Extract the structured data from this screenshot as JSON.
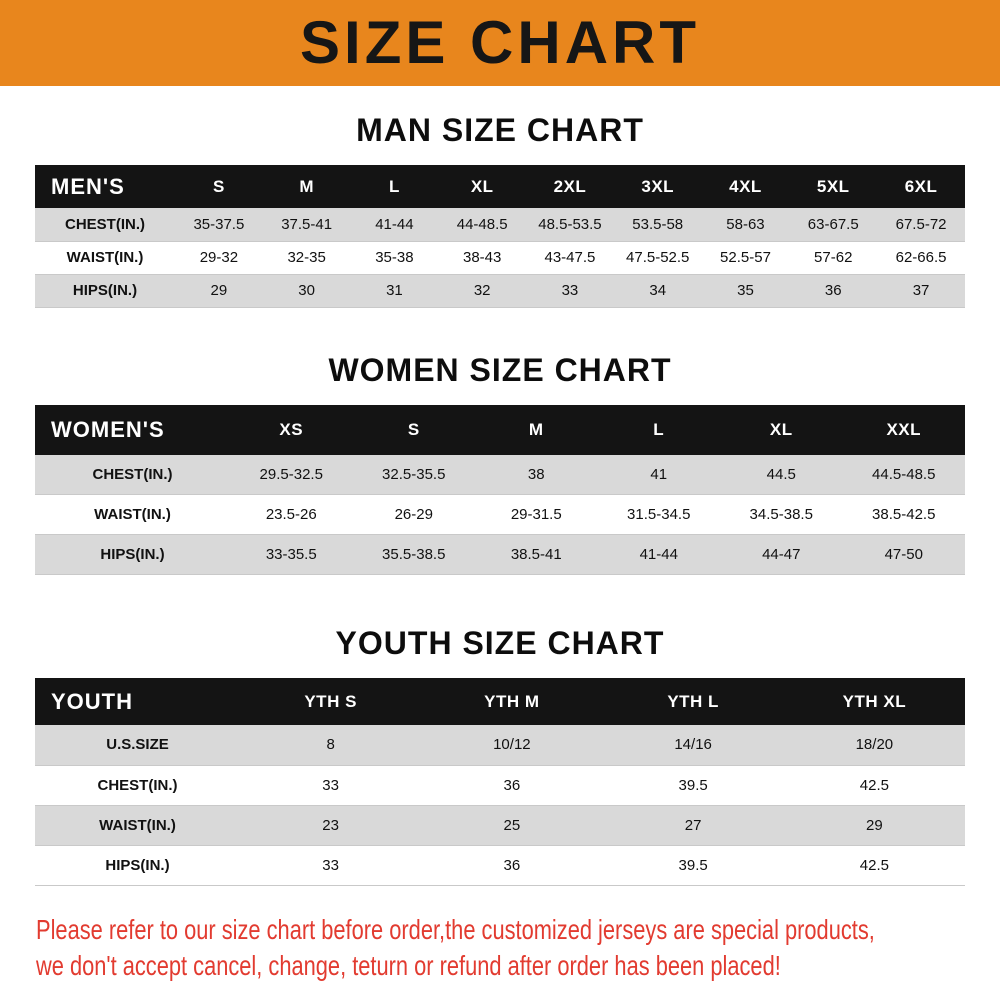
{
  "banner": {
    "title": "SIZE CHART"
  },
  "sections": [
    {
      "id": "men",
      "title": "MAN SIZE CHART",
      "header": [
        "MEN'S",
        "S",
        "M",
        "L",
        "XL",
        "2XL",
        "3XL",
        "4XL",
        "5XL",
        "6XL"
      ],
      "rows": [
        [
          "CHEST(IN.)",
          "35-37.5",
          "37.5-41",
          "41-44",
          "44-48.5",
          "48.5-53.5",
          "53.5-58",
          "58-63",
          "63-67.5",
          "67.5-72"
        ],
        [
          "WAIST(IN.)",
          "29-32",
          "32-35",
          "35-38",
          "38-43",
          "43-47.5",
          "47.5-52.5",
          "52.5-57",
          "57-62",
          "62-66.5"
        ],
        [
          "HIPS(IN.)",
          "29",
          "30",
          "31",
          "32",
          "33",
          "34",
          "35",
          "36",
          "37"
        ]
      ]
    },
    {
      "id": "women",
      "title": "WOMEN SIZE CHART",
      "header": [
        "WOMEN'S",
        "XS",
        "S",
        "M",
        "L",
        "XL",
        "XXL"
      ],
      "rows": [
        [
          "CHEST(IN.)",
          "29.5-32.5",
          "32.5-35.5",
          "38",
          "41",
          "44.5",
          "44.5-48.5"
        ],
        [
          "WAIST(IN.)",
          "23.5-26",
          "26-29",
          "29-31.5",
          "31.5-34.5",
          "34.5-38.5",
          "38.5-42.5"
        ],
        [
          "HIPS(IN.)",
          "33-35.5",
          "35.5-38.5",
          "38.5-41",
          "41-44",
          "44-47",
          "47-50"
        ]
      ]
    },
    {
      "id": "youth",
      "title": "YOUTH SIZE CHART",
      "header": [
        "YOUTH",
        "YTH S",
        "YTH M",
        "YTH L",
        "YTH XL"
      ],
      "rows": [
        [
          "U.S.SIZE",
          "8",
          "10/12",
          "14/16",
          "18/20"
        ],
        [
          "CHEST(IN.)",
          "33",
          "36",
          "39.5",
          "42.5"
        ],
        [
          "WAIST(IN.)",
          "23",
          "25",
          "27",
          "29"
        ],
        [
          "HIPS(IN.)",
          "33",
          "36",
          "39.5",
          "42.5"
        ]
      ]
    }
  ],
  "notice": {
    "line1": "Please refer to our size chart before order,the customized jerseys are special products,",
    "line2": "we don't accept cancel, change, teturn or refund after order has been placed!"
  },
  "colors": {
    "banner_orange": "#e8861d",
    "header_black": "#141414",
    "row_gray": "#d9d9d9",
    "notice_red": "#e23b30"
  }
}
